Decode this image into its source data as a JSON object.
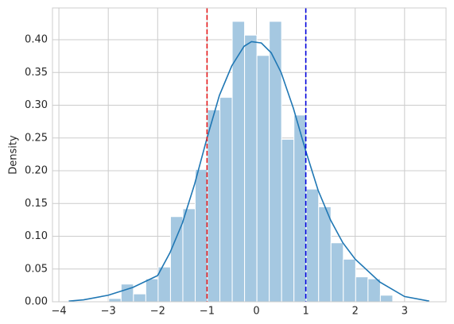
{
  "chart_data": {
    "type": "histogram",
    "ylabel": "Density",
    "bins": [
      -2.99,
      -2.74,
      -2.49,
      -2.24,
      -1.99,
      -1.74,
      -1.49,
      -1.24,
      -0.99,
      -0.74,
      -0.49,
      -0.24,
      0.01,
      0.26,
      0.51,
      0.76,
      1.01,
      1.26,
      1.51,
      1.76,
      2.01,
      2.26,
      2.51,
      2.76
    ],
    "counts": [
      0.005,
      0.027,
      0.012,
      0.035,
      0.053,
      0.13,
      0.142,
      0.202,
      0.293,
      0.312,
      0.428,
      0.407,
      0.376,
      0.428,
      0.248,
      0.285,
      0.172,
      0.145,
      0.09,
      0.065,
      0.038,
      0.035,
      0.01
    ],
    "color": "#a5c8e1",
    "kde": {
      "color": "#1f77b4",
      "x": [
        -3.8,
        -3.5,
        -3.0,
        -2.5,
        -2.0,
        -1.75,
        -1.5,
        -1.25,
        -1.0,
        -0.75,
        -0.5,
        -0.25,
        -0.1,
        0.1,
        0.3,
        0.5,
        0.75,
        1.0,
        1.25,
        1.5,
        1.75,
        2.0,
        2.5,
        3.0,
        3.5
      ],
      "values": [
        0.001,
        0.003,
        0.01,
        0.022,
        0.04,
        0.075,
        0.12,
        0.18,
        0.25,
        0.315,
        0.36,
        0.39,
        0.397,
        0.395,
        0.38,
        0.35,
        0.295,
        0.23,
        0.17,
        0.125,
        0.09,
        0.065,
        0.03,
        0.008,
        0.001
      ]
    },
    "vlines": [
      {
        "value": -1,
        "color": "#e41a1c"
      },
      {
        "value": 1,
        "color": "#0000dd"
      }
    ],
    "xlim": [
      -4.13,
      3.84
    ],
    "ylim": [
      0,
      0.4485
    ],
    "xticks": [
      {
        "value": -4,
        "label": "−4"
      },
      {
        "value": -3,
        "label": "−3"
      },
      {
        "value": -2,
        "label": "−2"
      },
      {
        "value": -1,
        "label": "−1"
      },
      0,
      1,
      2,
      3
    ],
    "yticks": [
      {
        "value": 0,
        "label": "0.00"
      },
      {
        "value": 0.05,
        "label": "0.05"
      },
      {
        "value": 0.1,
        "label": "0.10"
      },
      {
        "value": 0.15,
        "label": "0.15"
      },
      {
        "value": 0.2,
        "label": "0.20"
      },
      {
        "value": 0.25,
        "label": "0.25"
      },
      {
        "value": 0.3,
        "label": "0.30"
      },
      {
        "value": 0.35,
        "label": "0.35"
      },
      {
        "value": 0.4,
        "label": "0.40"
      }
    ],
    "grid": true
  }
}
